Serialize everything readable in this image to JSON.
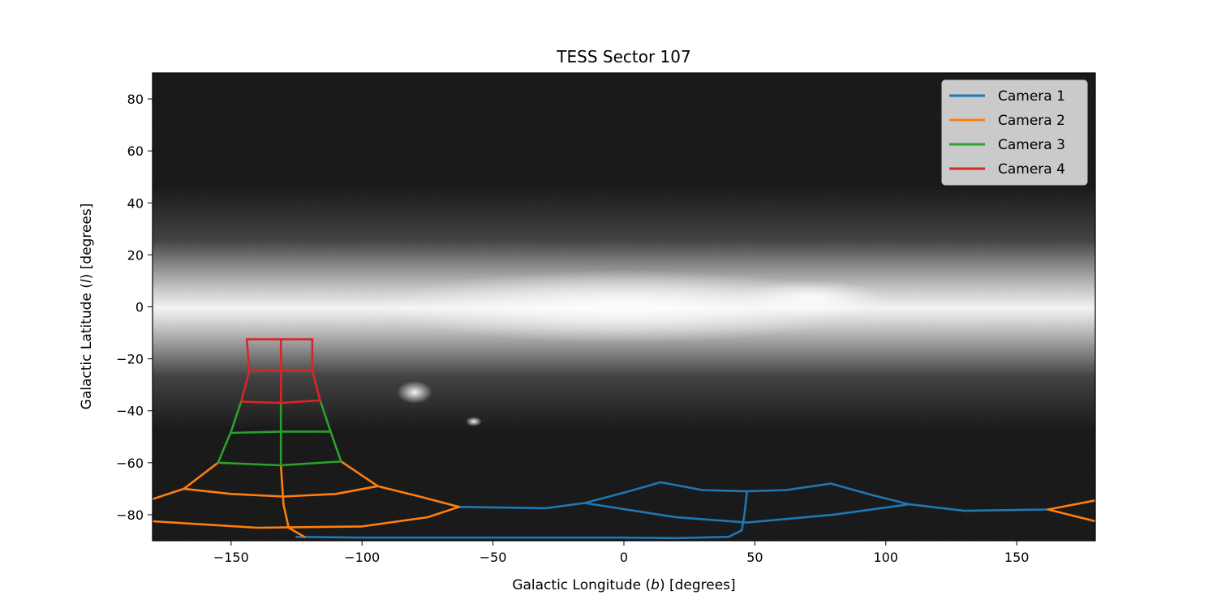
{
  "chart_data": {
    "type": "line",
    "title": "TESS Sector 107",
    "xlabel_prefix": "Galactic Longitude (",
    "xlabel_var": "b",
    "xlabel_suffix": ") [degrees]",
    "ylabel_prefix": "Galactic Latitude (",
    "ylabel_var": "l",
    "ylabel_suffix": ") [degrees]",
    "xlim": [
      -180,
      180
    ],
    "ylim": [
      -90,
      90
    ],
    "xticks": [
      -150,
      -100,
      -50,
      0,
      50,
      100,
      150
    ],
    "yticks": [
      -80,
      -60,
      -40,
      -20,
      0,
      20,
      40,
      60,
      80
    ],
    "xtick_labels": [
      "−150",
      "−100",
      "−50",
      "0",
      "50",
      "100",
      "150"
    ],
    "ytick_labels": [
      "−80",
      "−60",
      "−40",
      "−20",
      "0",
      "20",
      "40",
      "60",
      "80"
    ],
    "background": "Milky Way all-sky star map (grayscale)",
    "grid": false,
    "legend_position": "top-right",
    "series": [
      {
        "name": "Camera 1",
        "color": "#1f77b4",
        "segments": [
          [
            [
              -63,
              -77
            ],
            [
              -30,
              -77.5
            ],
            [
              -15,
              -75.5
            ],
            [
              0,
              -71.5
            ],
            [
              14,
              -67.5
            ],
            [
              30,
              -70.5
            ],
            [
              47,
              -71
            ],
            [
              62,
              -70.5
            ],
            [
              79,
              -68
            ],
            [
              95,
              -72.5
            ],
            [
              109,
              -76
            ]
          ],
          [
            [
              -15,
              -75.5
            ],
            [
              20,
              -81
            ],
            [
              47,
              -83
            ],
            [
              80,
              -80
            ],
            [
              109,
              -76
            ]
          ],
          [
            [
              109,
              -76
            ],
            [
              130,
              -78.5
            ],
            [
              162,
              -78
            ]
          ],
          [
            [
              47,
              -71
            ],
            [
              46,
              -80
            ],
            [
              45,
              -86
            ],
            [
              40,
              -88.5
            ],
            [
              20,
              -89
            ]
          ],
          [
            [
              -125,
              -88.5
            ],
            [
              -100,
              -88.8
            ],
            [
              -50,
              -88.8
            ],
            [
              0,
              -88.8
            ],
            [
              20,
              -89
            ]
          ]
        ]
      },
      {
        "name": "Camera 2",
        "color": "#ff7f0e",
        "segments": [
          [
            [
              -180,
              -74
            ],
            [
              -168,
              -70
            ],
            [
              -150,
              -72
            ],
            [
              -130,
              -73
            ],
            [
              -110,
              -72
            ],
            [
              -94,
              -69
            ]
          ],
          [
            [
              -168,
              -70
            ],
            [
              -155,
              -60
            ]
          ],
          [
            [
              -94,
              -69
            ],
            [
              -108,
              -59.5
            ]
          ],
          [
            [
              -94,
              -69
            ],
            [
              -78,
              -73
            ],
            [
              -63,
              -77
            ]
          ],
          [
            [
              -131,
              -61
            ],
            [
              -130,
              -76
            ],
            [
              -128,
              -85
            ],
            [
              -122,
              -88.5
            ]
          ],
          [
            [
              -180,
              -82.5
            ],
            [
              -140,
              -85
            ],
            [
              -100,
              -84.5
            ],
            [
              -75,
              -81
            ],
            [
              -63,
              -77
            ]
          ],
          [
            [
              162,
              -78
            ],
            [
              180,
              -74.5
            ]
          ],
          [
            [
              162,
              -78
            ],
            [
              180,
              -82.5
            ]
          ]
        ]
      },
      {
        "name": "Camera 3",
        "color": "#2ca02c",
        "segments": [
          [
            [
              -155,
              -60
            ],
            [
              -150,
              -48
            ],
            [
              -146,
              -36
            ]
          ],
          [
            [
              -108,
              -59.5
            ],
            [
              -112,
              -48
            ],
            [
              -116,
              -36
            ]
          ],
          [
            [
              -155,
              -60
            ],
            [
              -131,
              -61
            ],
            [
              -108,
              -59.5
            ]
          ],
          [
            [
              -150,
              -48.5
            ],
            [
              -131,
              -48
            ],
            [
              -112,
              -48
            ]
          ],
          [
            [
              -131,
              -61
            ],
            [
              -131,
              -36
            ]
          ]
        ]
      },
      {
        "name": "Camera 4",
        "color": "#d62728",
        "segments": [
          [
            [
              -146,
              -36
            ],
            [
              -143,
              -24.5
            ],
            [
              -144,
              -12.5
            ]
          ],
          [
            [
              -116,
              -36
            ],
            [
              -119,
              -24.5
            ],
            [
              -119,
              -12.5
            ]
          ],
          [
            [
              -146,
              -36.5
            ],
            [
              -131,
              -37
            ],
            [
              -116,
              -36
            ]
          ],
          [
            [
              -143,
              -24.5
            ],
            [
              -131,
              -24.5
            ],
            [
              -119,
              -24.5
            ]
          ],
          [
            [
              -144,
              -12.5
            ],
            [
              -131,
              -12.5
            ],
            [
              -119,
              -12.5
            ]
          ],
          [
            [
              -131,
              -37
            ],
            [
              -131,
              -12.5
            ]
          ]
        ]
      }
    ]
  }
}
